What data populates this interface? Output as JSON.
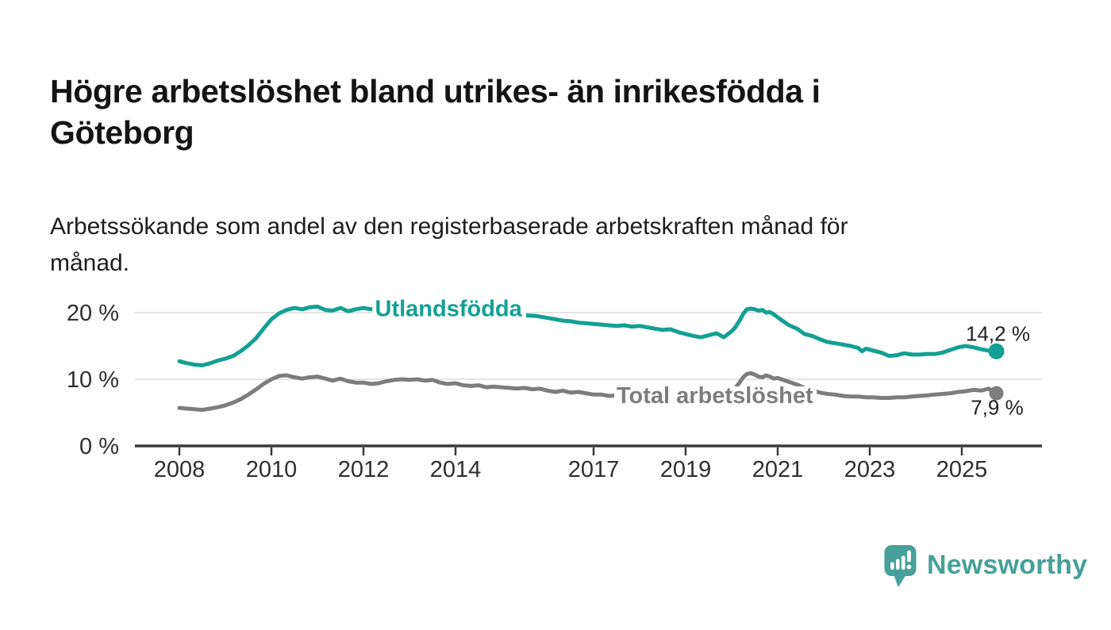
{
  "header": {
    "title_line1": "Högre arbetslöshet bland utrikes- än inrikesfödda i",
    "title_line2": "Göteborg",
    "subtitle_line1": "Arbetssökande som andel av den registerbaserade arbetskraften månad för",
    "subtitle_line2": "månad."
  },
  "footer": {
    "brand": "Newsworthy",
    "logo_icon": "newsworthy-speech-bubble-bar-chart-icon",
    "brand_color": "#47a09a"
  },
  "chart_data": {
    "type": "line",
    "title": "Högre arbetslöshet bland utrikes- än inrikesfödda i Göteborg",
    "subtitle": "Arbetssökande som andel av den registerbaserade arbetskraften månad för månad.",
    "grid": true,
    "legend_position": "inline-labels",
    "colors": {
      "grid": "#dcdcdc",
      "axis": "#383838",
      "axis_text": "#2f2f2f",
      "value_label": "#1f1f1f"
    },
    "x_axis": {
      "ticks": [
        2008,
        2010,
        2012,
        2014,
        2017,
        2019,
        2021,
        2023,
        2025
      ],
      "tick_labels": [
        "2008",
        "2010",
        "2012",
        "2014",
        "2017",
        "2019",
        "2021",
        "2023",
        "2025"
      ],
      "range": [
        2007.05,
        2026.75
      ]
    },
    "y_axis": {
      "unit": "%",
      "ticks": [
        0,
        10,
        20
      ],
      "tick_labels": [
        "0 %",
        "10 %",
        "20 %"
      ],
      "range": [
        0,
        24
      ]
    },
    "series": [
      {
        "name": "Utlandsfödda",
        "color": "#13a094",
        "end_label": "14,2 %",
        "end_value": 14.2,
        "label_anchor": {
          "x": 2012.25,
          "y": 19.45
        },
        "points": [
          [
            2008,
            12.7
          ],
          [
            2008.17,
            12.4
          ],
          [
            2008.33,
            12.2
          ],
          [
            2008.5,
            12.1
          ],
          [
            2008.67,
            12.4
          ],
          [
            2008.83,
            12.8
          ],
          [
            2009,
            13.1
          ],
          [
            2009.17,
            13.5
          ],
          [
            2009.33,
            14.2
          ],
          [
            2009.5,
            15.1
          ],
          [
            2009.67,
            16.2
          ],
          [
            2009.83,
            17.6
          ],
          [
            2010,
            19
          ],
          [
            2010.17,
            19.9
          ],
          [
            2010.33,
            20.4
          ],
          [
            2010.5,
            20.7
          ],
          [
            2010.67,
            20.5
          ],
          [
            2010.83,
            20.8
          ],
          [
            2011,
            20.9
          ],
          [
            2011.17,
            20.4
          ],
          [
            2011.33,
            20.3
          ],
          [
            2011.5,
            20.7
          ],
          [
            2011.67,
            20.2
          ],
          [
            2011.83,
            20.5
          ],
          [
            2012,
            20.7
          ],
          [
            2012.17,
            20.5
          ],
          [
            2012.33,
            20.8
          ],
          [
            2012.5,
            20.6
          ],
          [
            2012.67,
            20.4
          ],
          [
            2012.83,
            20.3
          ],
          [
            2013,
            20.2
          ],
          [
            2013.25,
            20.1
          ],
          [
            2013.5,
            20
          ],
          [
            2013.75,
            19.9
          ],
          [
            2014,
            19.9
          ],
          [
            2014.25,
            19.8
          ],
          [
            2014.5,
            19.8
          ],
          [
            2014.75,
            19.7
          ],
          [
            2015,
            19.7
          ],
          [
            2015.25,
            19.6
          ],
          [
            2015.5,
            19.6
          ],
          [
            2015.75,
            19.5
          ],
          [
            2016,
            19.2
          ],
          [
            2016.17,
            19
          ],
          [
            2016.33,
            18.8
          ],
          [
            2016.5,
            18.7
          ],
          [
            2016.67,
            18.5
          ],
          [
            2016.83,
            18.4
          ],
          [
            2017,
            18.3
          ],
          [
            2017.17,
            18.2
          ],
          [
            2017.33,
            18.1
          ],
          [
            2017.5,
            18
          ],
          [
            2017.67,
            18.1
          ],
          [
            2017.83,
            17.9
          ],
          [
            2018,
            18
          ],
          [
            2018.17,
            17.8
          ],
          [
            2018.33,
            17.6
          ],
          [
            2018.5,
            17.4
          ],
          [
            2018.67,
            17.5
          ],
          [
            2018.83,
            17.1
          ],
          [
            2019,
            16.8
          ],
          [
            2019.17,
            16.5
          ],
          [
            2019.33,
            16.3
          ],
          [
            2019.5,
            16.6
          ],
          [
            2019.67,
            16.9
          ],
          [
            2019.83,
            16.3
          ],
          [
            2019.92,
            16.8
          ],
          [
            2020,
            17.2
          ],
          [
            2020.08,
            17.8
          ],
          [
            2020.17,
            18.8
          ],
          [
            2020.25,
            19.8
          ],
          [
            2020.33,
            20.5
          ],
          [
            2020.42,
            20.6
          ],
          [
            2020.5,
            20.5
          ],
          [
            2020.58,
            20.3
          ],
          [
            2020.67,
            20.4
          ],
          [
            2020.75,
            20
          ],
          [
            2020.83,
            20.1
          ],
          [
            2020.92,
            19.7
          ],
          [
            2021,
            19.3
          ],
          [
            2021.08,
            18.9
          ],
          [
            2021.25,
            18.1
          ],
          [
            2021.42,
            17.6
          ],
          [
            2021.58,
            16.8
          ],
          [
            2021.75,
            16.5
          ],
          [
            2021.92,
            16
          ],
          [
            2022.08,
            15.6
          ],
          [
            2022.25,
            15.4
          ],
          [
            2022.42,
            15.2
          ],
          [
            2022.58,
            15
          ],
          [
            2022.75,
            14.7
          ],
          [
            2022.83,
            14.2
          ],
          [
            2022.92,
            14.6
          ],
          [
            2023.08,
            14.3
          ],
          [
            2023.25,
            14
          ],
          [
            2023.42,
            13.5
          ],
          [
            2023.58,
            13.6
          ],
          [
            2023.75,
            13.9
          ],
          [
            2023.92,
            13.7
          ],
          [
            2024.08,
            13.7
          ],
          [
            2024.25,
            13.8
          ],
          [
            2024.42,
            13.8
          ],
          [
            2024.58,
            14
          ],
          [
            2024.75,
            14.4
          ],
          [
            2024.92,
            14.8
          ],
          [
            2025.08,
            15
          ],
          [
            2025.25,
            14.8
          ],
          [
            2025.42,
            14.5
          ],
          [
            2025.58,
            14.3
          ],
          [
            2025.75,
            14.2
          ]
        ]
      },
      {
        "name": "Total arbetslöshet",
        "color": "#7d7d7d",
        "end_label": "7,9 %",
        "end_value": 7.9,
        "label_anchor": {
          "x": 2017.5,
          "y": 6.43
        },
        "points": [
          [
            2008,
            5.7
          ],
          [
            2008.17,
            5.6
          ],
          [
            2008.33,
            5.5
          ],
          [
            2008.5,
            5.4
          ],
          [
            2008.67,
            5.6
          ],
          [
            2008.83,
            5.8
          ],
          [
            2009,
            6.1
          ],
          [
            2009.17,
            6.5
          ],
          [
            2009.33,
            7
          ],
          [
            2009.5,
            7.7
          ],
          [
            2009.67,
            8.5
          ],
          [
            2009.83,
            9.3
          ],
          [
            2010,
            10
          ],
          [
            2010.17,
            10.5
          ],
          [
            2010.33,
            10.6
          ],
          [
            2010.5,
            10.3
          ],
          [
            2010.67,
            10.1
          ],
          [
            2010.83,
            10.3
          ],
          [
            2011,
            10.4
          ],
          [
            2011.17,
            10.1
          ],
          [
            2011.33,
            9.8
          ],
          [
            2011.5,
            10.1
          ],
          [
            2011.67,
            9.7
          ],
          [
            2011.83,
            9.5
          ],
          [
            2012,
            9.5
          ],
          [
            2012.17,
            9.3
          ],
          [
            2012.33,
            9.4
          ],
          [
            2012.5,
            9.7
          ],
          [
            2012.67,
            9.9
          ],
          [
            2012.83,
            10
          ],
          [
            2013,
            9.9
          ],
          [
            2013.17,
            10
          ],
          [
            2013.33,
            9.8
          ],
          [
            2013.5,
            9.9
          ],
          [
            2013.67,
            9.5
          ],
          [
            2013.83,
            9.3
          ],
          [
            2014,
            9.4
          ],
          [
            2014.17,
            9.1
          ],
          [
            2014.33,
            9
          ],
          [
            2014.5,
            9.1
          ],
          [
            2014.67,
            8.8
          ],
          [
            2014.83,
            8.9
          ],
          [
            2015,
            8.8
          ],
          [
            2015.17,
            8.7
          ],
          [
            2015.33,
            8.6
          ],
          [
            2015.5,
            8.7
          ],
          [
            2015.67,
            8.5
          ],
          [
            2015.83,
            8.6
          ],
          [
            2016,
            8.3
          ],
          [
            2016.17,
            8.1
          ],
          [
            2016.33,
            8.3
          ],
          [
            2016.5,
            8
          ],
          [
            2016.67,
            8.1
          ],
          [
            2016.83,
            7.9
          ],
          [
            2017,
            7.7
          ],
          [
            2017.17,
            7.7
          ],
          [
            2017.33,
            7.5
          ],
          [
            2017.5,
            7.6
          ],
          [
            2017.67,
            7.5
          ],
          [
            2017.83,
            7.4
          ],
          [
            2018,
            7.4
          ],
          [
            2018.17,
            7.3
          ],
          [
            2018.33,
            7.3
          ],
          [
            2018.5,
            7.2
          ],
          [
            2018.67,
            7.2
          ],
          [
            2018.83,
            7.2
          ],
          [
            2019,
            7.2
          ],
          [
            2019.17,
            7.3
          ],
          [
            2019.33,
            7.3
          ],
          [
            2019.5,
            7.4
          ],
          [
            2019.67,
            7.5
          ],
          [
            2019.83,
            7.7
          ],
          [
            2020,
            8
          ],
          [
            2020.08,
            8.7
          ],
          [
            2020.17,
            9.5
          ],
          [
            2020.25,
            10.3
          ],
          [
            2020.33,
            10.8
          ],
          [
            2020.42,
            10.9
          ],
          [
            2020.5,
            10.7
          ],
          [
            2020.58,
            10.4
          ],
          [
            2020.67,
            10.3
          ],
          [
            2020.75,
            10.6
          ],
          [
            2020.83,
            10.4
          ],
          [
            2020.92,
            10.1
          ],
          [
            2021,
            10.2
          ],
          [
            2021.08,
            10
          ],
          [
            2021.25,
            9.6
          ],
          [
            2021.42,
            9.2
          ],
          [
            2021.58,
            8.7
          ],
          [
            2021.75,
            8.3
          ],
          [
            2021.92,
            8
          ],
          [
            2022.08,
            7.8
          ],
          [
            2022.25,
            7.7
          ],
          [
            2022.42,
            7.5
          ],
          [
            2022.58,
            7.4
          ],
          [
            2022.75,
            7.4
          ],
          [
            2022.92,
            7.3
          ],
          [
            2023.08,
            7.3
          ],
          [
            2023.25,
            7.2
          ],
          [
            2023.42,
            7.2
          ],
          [
            2023.58,
            7.3
          ],
          [
            2023.75,
            7.3
          ],
          [
            2023.92,
            7.4
          ],
          [
            2024.08,
            7.5
          ],
          [
            2024.25,
            7.6
          ],
          [
            2024.42,
            7.7
          ],
          [
            2024.58,
            7.8
          ],
          [
            2024.75,
            7.9
          ],
          [
            2024.92,
            8.1
          ],
          [
            2025.08,
            8.2
          ],
          [
            2025.25,
            8.4
          ],
          [
            2025.42,
            8.3
          ],
          [
            2025.58,
            8.6
          ],
          [
            2025.75,
            7.9
          ]
        ]
      }
    ]
  }
}
